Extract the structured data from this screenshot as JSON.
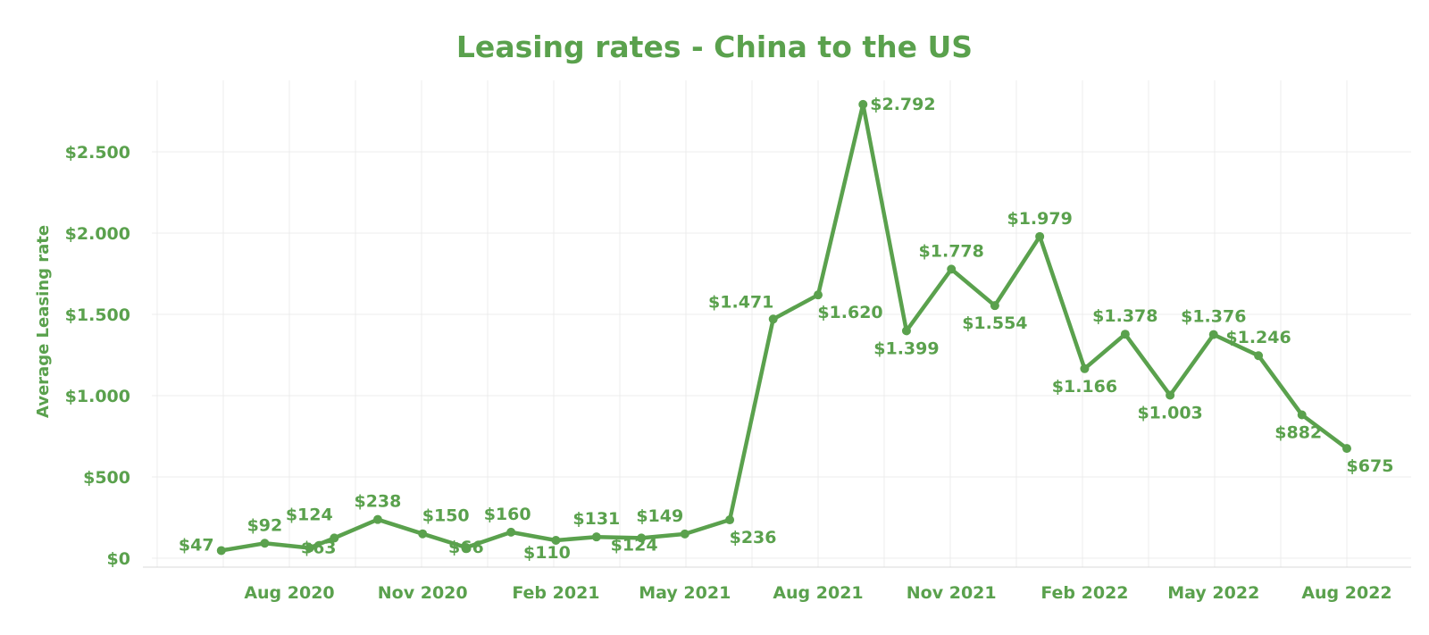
{
  "chart_data": {
    "type": "line",
    "title": "Leasing rates - China to the US",
    "xlabel": "",
    "ylabel": "Average Leasing rate",
    "ylim": [
      0,
      2800
    ],
    "y_ticks": [
      0,
      500,
      1000,
      1500,
      2000,
      2500
    ],
    "y_tick_labels": [
      "$0",
      "$500",
      "$1.000",
      "$1.500",
      "$2.000",
      "$2.500"
    ],
    "x_ticks": [
      "2020-08",
      "2020-11",
      "2021-02",
      "2021-05",
      "2021-08",
      "2021-11",
      "2022-02",
      "2022-05",
      "2022-08"
    ],
    "x_tick_labels": [
      "Aug 2020",
      "Nov 2020",
      "Feb 2021",
      "May 2021",
      "Aug 2021",
      "Nov 2021",
      "Feb 2022",
      "May 2022",
      "Aug 2022"
    ],
    "grid": true,
    "color": "#5aa14d",
    "series": [
      {
        "points": [
          {
            "x": "2020-06-15",
            "y": 47,
            "label": "$47"
          },
          {
            "x": "2020-07-15",
            "y": 92,
            "label": "$92"
          },
          {
            "x": "2020-08-15",
            "y": 63,
            "label": "$63"
          },
          {
            "x": "2020-09-01",
            "y": 124,
            "label": "$124"
          },
          {
            "x": "2020-10-01",
            "y": 238,
            "label": "$238"
          },
          {
            "x": "2020-11-01",
            "y": 150,
            "label": "$150"
          },
          {
            "x": "2020-12-01",
            "y": 66,
            "label": "$66"
          },
          {
            "x": "2021-01-01",
            "y": 160,
            "label": "$160"
          },
          {
            "x": "2021-02-01",
            "y": 110,
            "label": "$110"
          },
          {
            "x": "2021-03-01",
            "y": 131,
            "label": "$131"
          },
          {
            "x": "2021-04-01",
            "y": 124,
            "label": "$124"
          },
          {
            "x": "2021-05-01",
            "y": 149,
            "label": "$149"
          },
          {
            "x": "2021-06-01",
            "y": 236,
            "label": "$236"
          },
          {
            "x": "2021-07-01",
            "y": 1471,
            "label": "$1.471"
          },
          {
            "x": "2021-08-01",
            "y": 1620,
            "label": "$1.620"
          },
          {
            "x": "2021-09-01",
            "y": 2792,
            "label": "$2.792"
          },
          {
            "x": "2021-10-01",
            "y": 1399,
            "label": "$1.399"
          },
          {
            "x": "2021-11-01",
            "y": 1778,
            "label": "$1.778"
          },
          {
            "x": "2021-12-01",
            "y": 1554,
            "label": "$1.554"
          },
          {
            "x": "2022-01-01",
            "y": 1979,
            "label": "$1.979"
          },
          {
            "x": "2022-02-01",
            "y": 1166,
            "label": "$1.166"
          },
          {
            "x": "2022-03-01",
            "y": 1378,
            "label": "$1.378"
          },
          {
            "x": "2022-04-01",
            "y": 1003,
            "label": "$1.003"
          },
          {
            "x": "2022-05-01",
            "y": 1376,
            "label": "$1.376"
          },
          {
            "x": "2022-06-01",
            "y": 1246,
            "label": "$1.246"
          },
          {
            "x": "2022-07-01",
            "y": 882,
            "label": "$882"
          },
          {
            "x": "2022-08-01",
            "y": 675,
            "label": "$675"
          }
        ]
      }
    ]
  }
}
